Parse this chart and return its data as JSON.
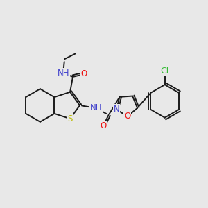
{
  "bg_color": "#e8e8e8",
  "bond_color": "#1a1a1a",
  "atom_colors": {
    "N": "#4040cc",
    "O": "#ee1111",
    "S": "#bbbb00",
    "Cl": "#33bb33",
    "C": "#1a1a1a"
  },
  "lw": 1.4,
  "fs": 8.5
}
